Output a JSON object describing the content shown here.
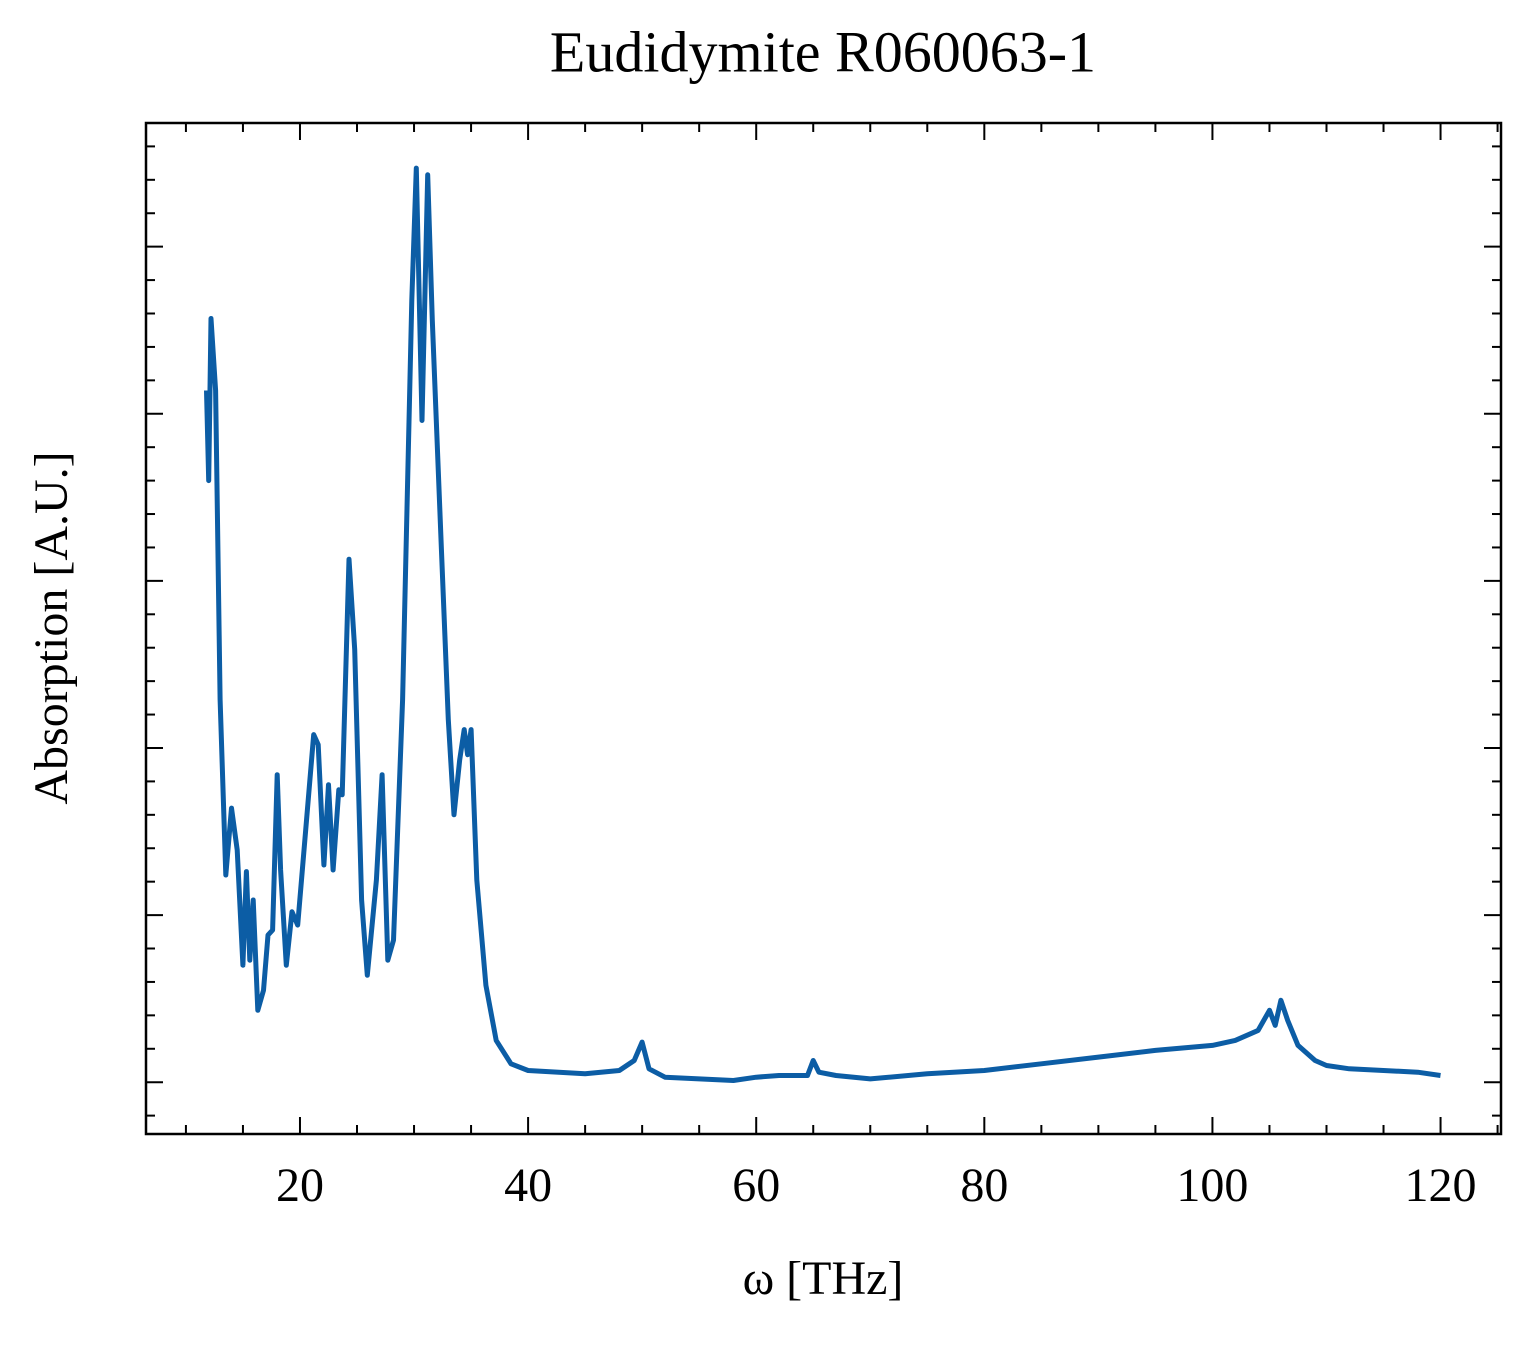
{
  "chart_data": {
    "type": "line",
    "title": "Eudidymite R060063-1",
    "x_label": "ω [THz]",
    "y_label": "Absorption [A.U.]",
    "color": "#0c5da5",
    "x": [
      11.8,
      12.0,
      12.2,
      12.6,
      13.0,
      13.5,
      14.0,
      14.5,
      15.0,
      15.3,
      15.6,
      15.9,
      16.3,
      16.8,
      17.2,
      17.6,
      18.0,
      18.3,
      18.8,
      19.3,
      19.8,
      20.5,
      21.2,
      21.6,
      22.1,
      22.5,
      22.9,
      23.4,
      23.7,
      24.3,
      24.8,
      25.4,
      25.9,
      26.7,
      27.2,
      27.7,
      28.2,
      29.0,
      29.8,
      30.2,
      30.7,
      31.2,
      31.6,
      32.4,
      33.0,
      33.5,
      34.0,
      34.4,
      34.7,
      35.0,
      35.5,
      36.3,
      37.2,
      38.5,
      40,
      45,
      48,
      49.3,
      50,
      50.6,
      52,
      55,
      58,
      60,
      62,
      64.5,
      65,
      65.5,
      67,
      70,
      75,
      80,
      85,
      90,
      95,
      100,
      102,
      104,
      105,
      105.5,
      106,
      106.6,
      107.5,
      109,
      110,
      112,
      115,
      118,
      120
    ],
    "values": [
      4.14,
      3.6,
      4.57,
      4.14,
      2.29,
      1.24,
      1.64,
      1.39,
      0.7,
      1.26,
      0.73,
      1.09,
      0.43,
      0.55,
      0.88,
      0.91,
      1.84,
      1.27,
      0.7,
      1.02,
      0.94,
      1.51,
      2.08,
      2.02,
      1.3,
      1.78,
      1.27,
      1.75,
      1.72,
      3.13,
      2.59,
      1.09,
      0.64,
      1.21,
      1.84,
      0.73,
      0.85,
      2.29,
      4.68,
      5.47,
      3.96,
      5.43,
      4.56,
      3.19,
      2.17,
      1.6,
      1.93,
      2.11,
      1.96,
      2.11,
      1.21,
      0.58,
      0.25,
      0.11,
      0.07,
      0.05,
      0.07,
      0.13,
      0.24,
      0.08,
      0.03,
      0.02,
      0.01,
      0.03,
      0.04,
      0.04,
      0.13,
      0.06,
      0.04,
      0.02,
      0.05,
      0.07,
      0.11,
      0.15,
      0.19,
      0.22,
      0.25,
      0.31,
      0.43,
      0.34,
      0.49,
      0.37,
      0.22,
      0.13,
      0.1,
      0.08,
      0.07,
      0.06,
      0.04
    ],
    "xlim": [
      6.5,
      125.3
    ],
    "xticks": [
      20,
      40,
      60,
      80,
      100,
      120
    ],
    "ylim": [
      -0.31,
      5.74
    ],
    "yticks": [
      0,
      1,
      2,
      3,
      4,
      5
    ]
  }
}
